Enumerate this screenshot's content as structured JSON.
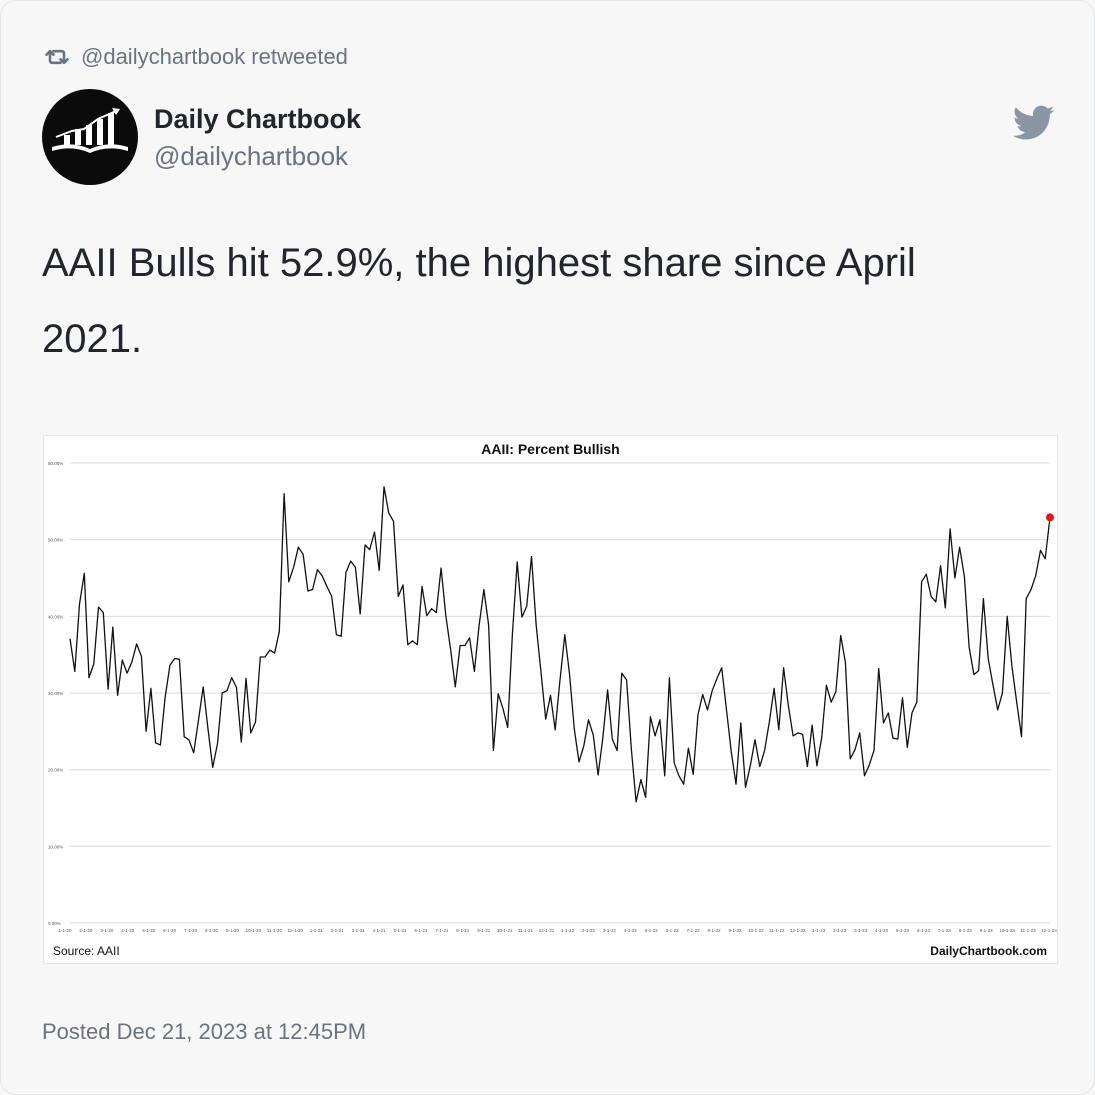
{
  "retweet": {
    "icon": "retweet-icon",
    "text": "@dailychartbook retweeted"
  },
  "author": {
    "name": "Daily Chartbook",
    "handle": "@dailychartbook",
    "avatar_icon": "chart-book-logo"
  },
  "brand_icon": "twitter-bird-icon",
  "tweet": {
    "line1": "AAII Bulls hit 52.9%, the highest share since April",
    "line2": "2021."
  },
  "posted": "Posted Dec 21, 2023 at 12:45PM",
  "colors": {
    "line": "#111111",
    "highlight": "#e8141b",
    "muted": "#6b7380",
    "text": "#22262c"
  },
  "chart_data": {
    "type": "line",
    "title": "AAII: Percent Bullish",
    "source": "Source: AAII",
    "credit": "DailyChartbook.com",
    "ylim": [
      0,
      60
    ],
    "yticks": [
      0,
      10,
      20,
      30,
      40,
      50,
      60
    ],
    "ytick_labels": [
      "0.00%",
      "10.00%",
      "20.00%",
      "30.00%",
      "40.00%",
      "50.00%",
      "60.00%"
    ],
    "xtick_labels": [
      "1-1-20",
      "2-1-20",
      "3-1-20",
      "4-1-20",
      "5-1-20",
      "6-1-20",
      "7-1-20",
      "8-1-20",
      "9-1-20",
      "10-1-20",
      "11-1-20",
      "12-1-20",
      "1-1-21",
      "2-1-21",
      "3-1-21",
      "4-1-21",
      "5-1-21",
      "6-1-21",
      "7-1-21",
      "8-1-21",
      "9-1-21",
      "10-1-21",
      "11-1-21",
      "12-1-21",
      "1-1-22",
      "2-1-22",
      "3-1-22",
      "4-1-22",
      "5-1-22",
      "6-1-22",
      "7-1-22",
      "8-1-22",
      "9-1-22",
      "10-1-22",
      "11-1-22",
      "12-1-22",
      "1-1-23",
      "2-1-23",
      "3-1-23",
      "4-1-23",
      "5-1-23",
      "6-1-23",
      "7-1-23",
      "8-1-23",
      "9-1-23",
      "10-1-23",
      "11-1-23",
      "12-1-23"
    ],
    "grid": true,
    "series": [
      {
        "values": [
          37.1,
          32.8,
          41.6,
          45.6,
          32.0,
          33.8,
          41.2,
          40.5,
          30.5,
          38.6,
          29.7,
          34.3,
          32.6,
          34.0,
          36.4,
          34.8,
          25.0,
          30.6,
          23.5,
          23.2,
          29.4,
          33.6,
          34.5,
          34.4,
          24.3,
          23.9,
          22.2,
          26.4,
          30.8,
          25.3,
          20.3,
          23.4,
          30.0,
          30.3,
          32.0,
          30.7,
          23.6,
          31.9,
          24.8,
          26.2,
          34.7,
          34.7,
          35.6,
          35.2,
          38.0,
          56.0,
          44.5,
          46.4,
          49.0,
          48.1,
          43.3,
          43.5,
          46.1,
          45.3,
          43.9,
          42.6,
          37.6,
          37.4,
          45.7,
          47.2,
          46.4,
          40.3,
          49.3,
          48.7,
          51.0,
          46.0,
          56.9,
          53.5,
          52.4,
          42.6,
          44.1,
          36.3,
          36.8,
          36.3,
          43.9,
          40.1,
          41.0,
          40.5,
          46.3,
          40.1,
          35.7,
          30.8,
          36.2,
          36.2,
          37.2,
          32.8,
          38.8,
          43.5,
          38.9,
          22.5,
          29.9,
          28.0,
          25.5,
          37.7,
          47.1,
          39.9,
          41.3,
          47.8,
          38.8,
          32.7,
          26.6,
          29.7,
          25.2,
          31.7,
          37.6,
          32.5,
          25.3,
          21.0,
          23.1,
          26.5,
          24.5,
          19.3,
          24.1,
          30.4,
          24.0,
          22.5,
          32.6,
          31.7,
          22.6,
          15.8,
          18.7,
          16.4,
          26.9,
          24.4,
          26.5,
          19.2,
          32.0,
          20.9,
          19.2,
          18.1,
          22.8,
          19.4,
          27.2,
          29.8,
          27.8,
          30.3,
          31.9,
          33.3,
          27.8,
          22.3,
          18.1,
          26.1,
          17.7,
          20.5,
          23.9,
          20.4,
          22.5,
          26.2,
          30.6,
          25.2,
          33.3,
          28.4,
          24.4,
          24.8,
          24.6,
          20.4,
          25.8,
          20.5,
          24.2,
          31.0,
          28.8,
          30.2,
          37.5,
          34.0,
          21.4,
          22.6,
          24.8,
          19.2,
          20.6,
          22.5,
          33.2,
          26.1,
          27.4,
          24.1,
          24.0,
          29.4,
          22.9,
          27.4,
          28.8,
          44.5,
          45.5,
          42.6,
          41.9,
          46.6,
          41.1,
          51.4,
          45.0,
          49.0,
          45.2,
          36.0,
          32.4,
          32.9,
          42.3,
          34.5,
          31.1,
          27.8,
          30.0,
          40.0,
          33.5,
          28.8,
          24.3,
          42.3,
          43.5,
          45.3,
          48.6,
          47.5,
          52.9
        ]
      }
    ]
  }
}
